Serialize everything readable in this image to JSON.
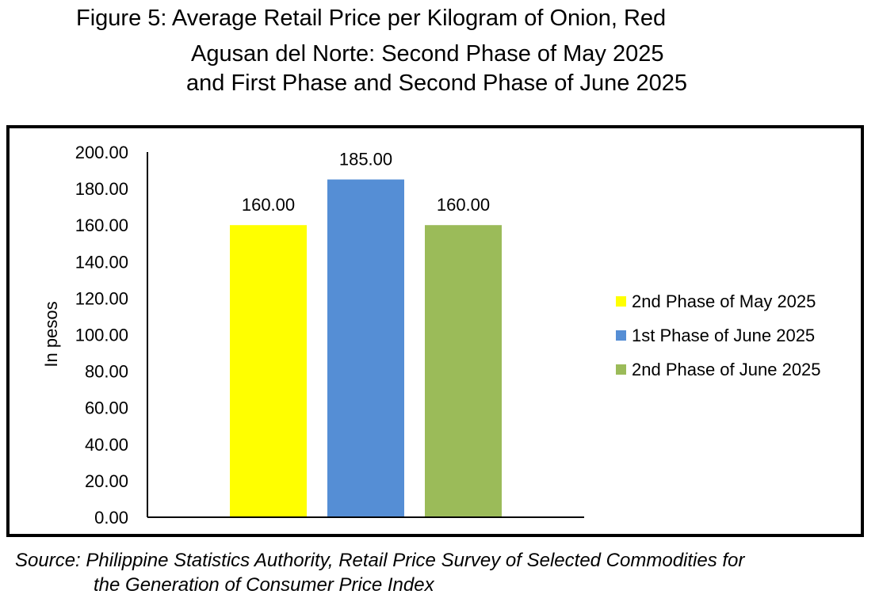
{
  "title": {
    "line1": "Figure 5: Average Retail Price per Kilogram of Onion, Red",
    "line2": "Agusan del Norte: Second Phase of May 2025",
    "line3": "and First Phase and Second Phase of June 2025"
  },
  "source": {
    "line1": "Source: Philippine Statistics Authority, Retail Price Survey of Selected Commodities for",
    "line2": "the Generation of Consumer Price Index"
  },
  "chart_data": {
    "type": "bar",
    "ylabel": "In pesos",
    "xlabel": "",
    "ylim": [
      0,
      200
    ],
    "yticks": [
      "0.00",
      "20.00",
      "40.00",
      "60.00",
      "80.00",
      "100.00",
      "120.00",
      "140.00",
      "160.00",
      "180.00",
      "200.00"
    ],
    "grid": false,
    "legend_position": "right",
    "series": [
      {
        "name": "2nd Phase of May 2025",
        "value": 160,
        "label": "160.00",
        "color": "#FFFF00"
      },
      {
        "name": "1st Phase of June 2025",
        "value": 185,
        "label": "185.00",
        "color": "#558ED5"
      },
      {
        "name": "2nd Phase of June 2025",
        "value": 160,
        "label": "160.00",
        "color": "#9BBB59"
      }
    ]
  }
}
